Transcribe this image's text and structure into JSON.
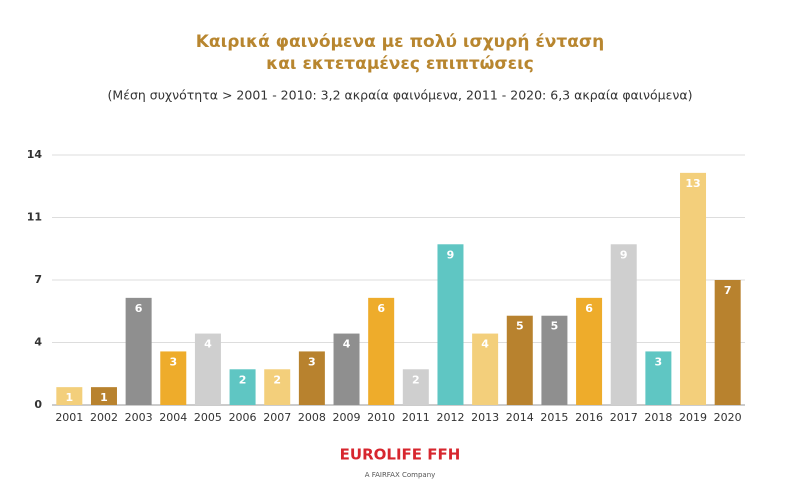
{
  "chart_data": {
    "type": "bar",
    "title": [
      "Καιρικά φαινόμενα με πολύ ισχυρή ένταση",
      "και εκτεταμένες επιπτώσεις"
    ],
    "subtitle": "(Μέση συχνότητα > 2001 - 2010: 3,2 ακραία φαινόμενα, 2011 - 2020: 6,3 ακραία φαινόμενα)",
    "categories": [
      "2001",
      "2002",
      "2003",
      "2004",
      "2005",
      "2006",
      "2007",
      "2008",
      "2009",
      "2010",
      "2011",
      "2012",
      "2013",
      "2014",
      "2015",
      "2016",
      "2017",
      "2018",
      "2019",
      "2020"
    ],
    "values": [
      1,
      1,
      6,
      3,
      4,
      2,
      2,
      3,
      4,
      6,
      2,
      9,
      4,
      5,
      5,
      6,
      9,
      3,
      13,
      7
    ],
    "colors": [
      "#f3cf7b",
      "#b8822e",
      "#8f8f8f",
      "#eeac2b",
      "#cfcfcf",
      "#5fc6c3",
      "#f3cf7b",
      "#b8822e",
      "#8f8f8f",
      "#eeac2b",
      "#cfcfcf",
      "#5fc6c3",
      "#f3cf7b",
      "#b8822e",
      "#8f8f8f",
      "#eeac2b",
      "#cfcfcf",
      "#5fc6c3",
      "#f3cf7b",
      "#b8822e"
    ],
    "ylim": [
      0,
      14
    ],
    "yticks": [
      0,
      {
        "value": 3.5,
        "label": "4"
      },
      7,
      {
        "value": 10.5,
        "label": "11"
      },
      14
    ],
    "grid": true
  },
  "footer": {
    "brand": "EUROLIFE FFH",
    "tagline": "A FAIRFAX Company"
  }
}
